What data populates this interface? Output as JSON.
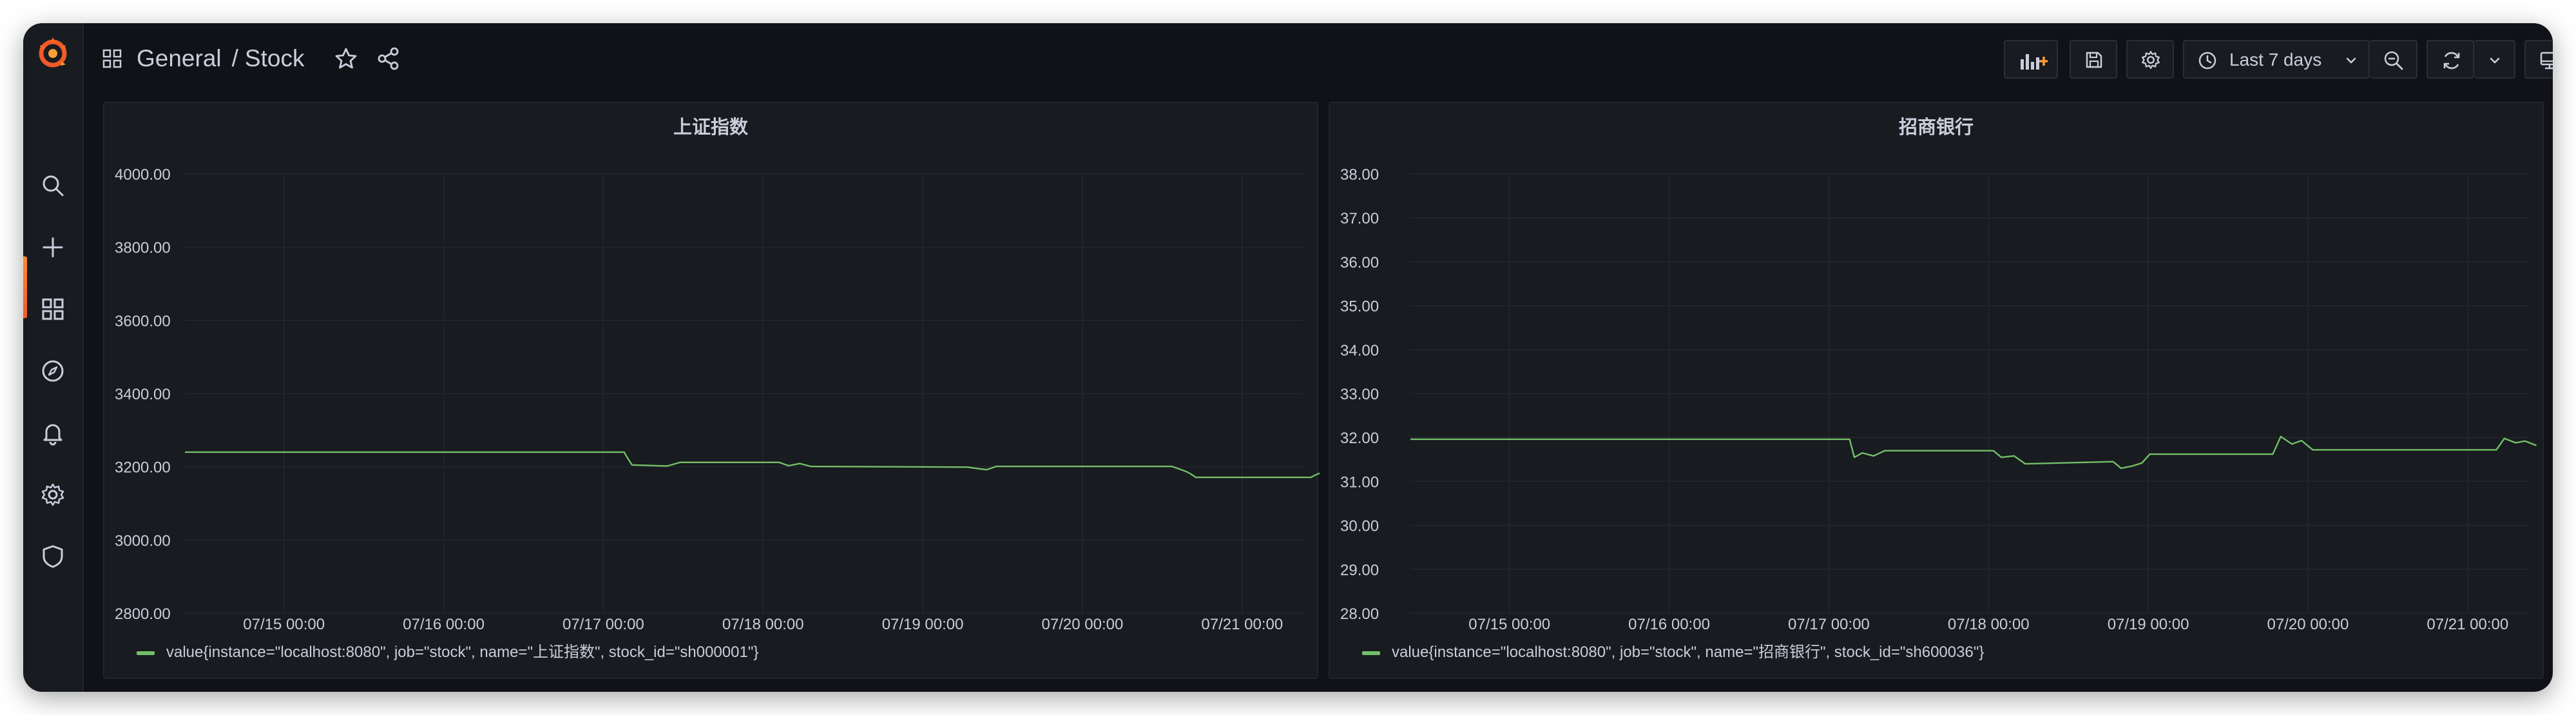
{
  "breadcrumb": {
    "folder": "General",
    "separator": "/",
    "dashboard": "Stock"
  },
  "toolbar": {
    "time_range": "Last 7 days"
  },
  "colors": {
    "series": "#73bf69",
    "accent": "#f05a28"
  },
  "sidebar": {
    "icons": [
      "search-icon",
      "plus-icon",
      "dashboards-icon",
      "explore-icon",
      "alerting-icon",
      "configuration-icon",
      "shield-icon"
    ]
  },
  "panels": [
    {
      "title": "上证指数",
      "legend": "value{instance=\"localhost:8080\", job=\"stock\", name=\"上证指数\", stock_id=\"sh000001\"}",
      "chart_data": {
        "type": "line",
        "title": "上证指数",
        "y_ticks": [
          "4000.00",
          "3800.00",
          "3600.00",
          "3400.00",
          "3200.00",
          "3000.00",
          "2800.00"
        ],
        "ylim": [
          2800,
          4000
        ],
        "x_ticks": [
          "07/15 00:00",
          "07/16 00:00",
          "07/17 00:00",
          "07/18 00:00",
          "07/19 00:00",
          "07/20 00:00",
          "07/21 00:00"
        ],
        "x_tick_days": [
          0.62,
          1.62,
          2.62,
          3.62,
          4.62,
          5.62,
          6.62
        ],
        "xlim": [
          0,
          7
        ],
        "series": [
          {
            "name": "value{instance=\"localhost:8080\", job=\"stock\", name=\"上证指数\", stock_id=\"sh000001\"}",
            "points": [
              [
                0.0,
                3240
              ],
              [
                2.75,
                3240
              ],
              [
                2.77,
                3225
              ],
              [
                2.8,
                3205
              ],
              [
                3.02,
                3202
              ],
              [
                3.1,
                3212
              ],
              [
                3.72,
                3212
              ],
              [
                3.78,
                3203
              ],
              [
                3.85,
                3209
              ],
              [
                3.92,
                3201
              ],
              [
                4.9,
                3199
              ],
              [
                4.95,
                3196
              ],
              [
                5.02,
                3192
              ],
              [
                5.08,
                3201
              ],
              [
                5.55,
                3201
              ],
              [
                6.18,
                3201
              ],
              [
                6.22,
                3195
              ],
              [
                6.27,
                3187
              ],
              [
                6.3,
                3180
              ],
              [
                6.33,
                3171
              ],
              [
                7.05,
                3171
              ],
              [
                7.1,
                3182
              ],
              [
                7.15,
                3175
              ],
              [
                7.21,
                3168
              ],
              [
                7.27,
                3171
              ]
            ]
          }
        ]
      }
    },
    {
      "title": "招商银行",
      "legend": "value{instance=\"localhost:8080\", job=\"stock\", name=\"招商银行\", stock_id=\"sh600036\"}",
      "chart_data": {
        "type": "line",
        "title": "招商银行",
        "y_ticks": [
          "38.00",
          "37.00",
          "36.00",
          "35.00",
          "34.00",
          "33.00",
          "32.00",
          "31.00",
          "30.00",
          "29.00",
          "28.00"
        ],
        "ylim": [
          28,
          38
        ],
        "x_ticks": [
          "07/15 00:00",
          "07/16 00:00",
          "07/17 00:00",
          "07/18 00:00",
          "07/19 00:00",
          "07/20 00:00",
          "07/21 00:00"
        ],
        "x_tick_days": [
          0.62,
          1.62,
          2.62,
          3.62,
          4.62,
          5.62,
          6.62
        ],
        "xlim": [
          0,
          7
        ],
        "series": [
          {
            "name": "value{instance=\"localhost:8080\", job=\"stock\", name=\"招商银行\", stock_id=\"sh600036\"}",
            "points": [
              [
                0.0,
                31.96
              ],
              [
                2.75,
                31.96
              ],
              [
                2.78,
                31.55
              ],
              [
                2.83,
                31.65
              ],
              [
                2.9,
                31.58
              ],
              [
                2.97,
                31.7
              ],
              [
                3.65,
                31.7
              ],
              [
                3.7,
                31.55
              ],
              [
                3.78,
                31.58
              ],
              [
                3.85,
                31.4
              ],
              [
                4.4,
                31.45
              ],
              [
                4.45,
                31.3
              ],
              [
                4.52,
                31.35
              ],
              [
                4.58,
                31.42
              ],
              [
                4.63,
                31.62
              ],
              [
                5.4,
                31.62
              ],
              [
                5.45,
                32.02
              ],
              [
                5.52,
                31.85
              ],
              [
                5.58,
                31.93
              ],
              [
                5.65,
                31.72
              ],
              [
                6.8,
                31.72
              ],
              [
                6.85,
                31.98
              ],
              [
                6.92,
                31.88
              ],
              [
                6.98,
                31.92
              ],
              [
                7.05,
                31.82
              ]
            ]
          }
        ]
      }
    }
  ]
}
